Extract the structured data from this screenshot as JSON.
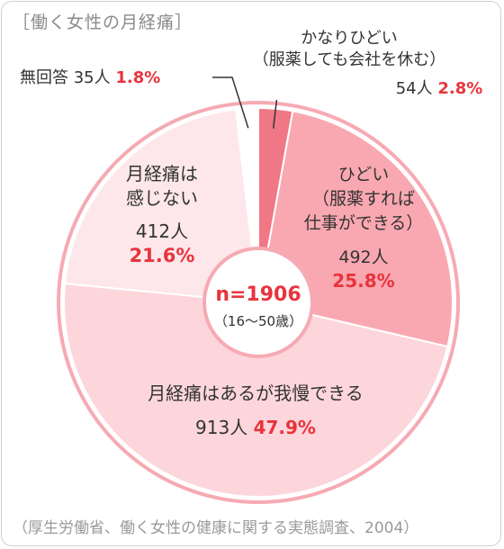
{
  "title": "［働く女性の月経痛］",
  "source": "（厚生労働省、働く女性の健康に関する実態調査、2004）",
  "center": {
    "n": "n=1906",
    "range": "（16〜50歳）"
  },
  "colors": {
    "slice_severe": "#f07785",
    "slice_bad": "#f9a8b1",
    "slice_bearable": "#fdd6dc",
    "slice_none": "#fde7ea",
    "slice_noanswer": "#ffffff",
    "ring": "#f6aab3",
    "accent": "#e8343c"
  },
  "chart_data": {
    "type": "pie",
    "title": "［働く女性の月経痛］",
    "total_label": "n=1906",
    "slices": [
      {
        "label_lines": [
          "かなりひどい",
          "（服薬しても会社を休む）"
        ],
        "count_label": "54人",
        "percent_label": "2.8%",
        "count": 54,
        "percent": 2.8
      },
      {
        "label_lines": [
          "ひどい",
          "（服薬すれば",
          "仕事ができる）"
        ],
        "count_label": "492人",
        "percent_label": "25.8%",
        "count": 492,
        "percent": 25.8
      },
      {
        "label_lines": [
          "月経痛はあるが我慢できる"
        ],
        "count_label": "913人",
        "percent_label": "47.9%",
        "count": 913,
        "percent": 47.9
      },
      {
        "label_lines": [
          "月経痛は",
          "感じない"
        ],
        "count_label": "412人",
        "percent_label": "21.6%",
        "count": 412,
        "percent": 21.6
      },
      {
        "label_lines": [
          "無回答"
        ],
        "count_label": "35人",
        "percent_label": "1.8%",
        "count": 35,
        "percent": 1.8
      }
    ]
  }
}
